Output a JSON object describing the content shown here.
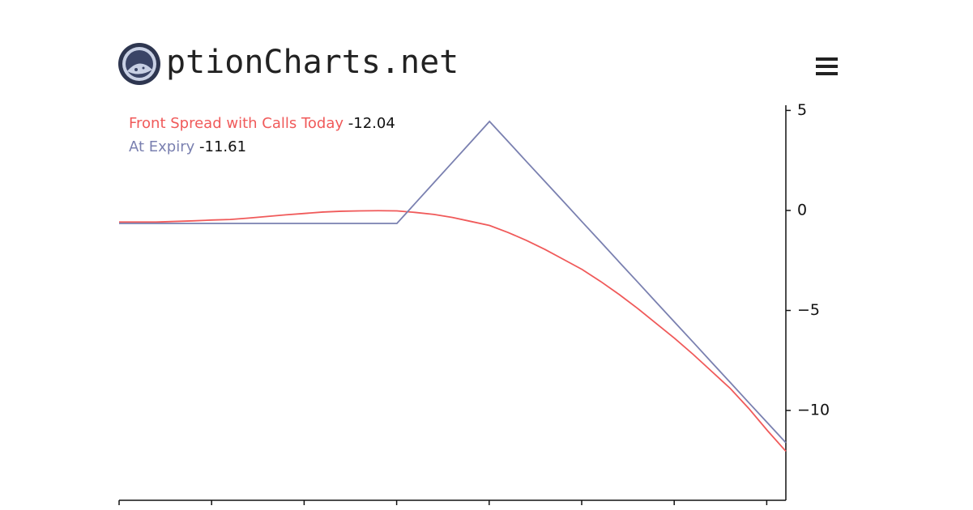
{
  "header": {
    "brand": "ptionCharts.net"
  },
  "chart_data": {
    "type": "line",
    "categories": [
      null,
      null,
      null,
      null,
      null,
      null,
      null,
      null,
      null,
      null,
      null,
      null,
      null,
      null,
      null,
      null,
      null,
      null,
      null,
      null,
      null,
      null,
      null,
      null,
      null,
      null,
      null,
      null,
      null,
      null,
      null,
      null,
      null,
      null,
      null,
      null,
      null
    ],
    "series": [
      {
        "name": "Front Spread with Calls Today",
        "color": "#f05a5a",
        "values": [
          -0.58,
          -0.58,
          -0.58,
          -0.55,
          -0.52,
          -0.48,
          -0.45,
          -0.38,
          -0.3,
          -0.22,
          -0.15,
          -0.08,
          -0.04,
          -0.02,
          -0.01,
          -0.02,
          -0.1,
          -0.2,
          -0.35,
          -0.55,
          -0.75,
          -1.1,
          -1.5,
          -1.95,
          -2.45,
          -2.95,
          -3.55,
          -4.2,
          -4.9,
          -5.65,
          -6.4,
          -7.2,
          -8.05,
          -8.9,
          -9.9,
          -11.0,
          -12.04
        ]
      },
      {
        "name": "At Expiry",
        "color": "#7a80b0",
        "values": [
          -0.65,
          -0.65,
          -0.65,
          -0.65,
          -0.65,
          -0.65,
          -0.65,
          -0.65,
          -0.65,
          -0.65,
          -0.65,
          -0.65,
          -0.65,
          -0.65,
          -0.65,
          -0.65,
          0.37,
          1.39,
          2.41,
          3.43,
          4.45,
          3.45,
          2.44,
          1.44,
          0.44,
          -0.57,
          -1.57,
          -2.58,
          -3.58,
          -4.59,
          -5.59,
          -6.59,
          -7.6,
          -8.6,
          -9.61,
          -10.61,
          -11.61
        ]
      }
    ],
    "ylim": [
      -14.49,
      5.26
    ],
    "yticks": [
      5,
      0,
      {
        "value": -5,
        "label": "−5"
      },
      {
        "value": -10,
        "label": "−10"
      }
    ]
  }
}
